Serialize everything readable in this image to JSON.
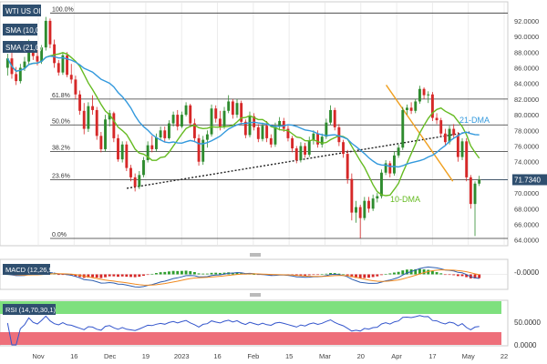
{
  "chart_data": [
    {
      "type": "candlestick",
      "instrument": "WTI US OIL",
      "last_price_label": "71.7340",
      "x_tick_labels": [
        "Nov",
        "16",
        "Dec",
        "19",
        "2023",
        "16",
        "Feb",
        "15",
        "Mar",
        "20",
        "Apr",
        "17",
        "May",
        "22"
      ],
      "y_tick_labels": [
        "92.0000",
        "90.0000",
        "88.0000",
        "86.0000",
        "84.0000",
        "82.0000",
        "80.0000",
        "78.0000",
        "76.0000",
        "74.0000",
        "72.0000",
        "70.0000",
        "68.0000",
        "66.0000",
        "64.0000"
      ],
      "ylim": [
        63.5,
        93.5
      ],
      "overlays": [
        {
          "name": "SMA (10,0)",
          "color": "#66bb22"
        },
        {
          "name": "SMA (21,0)",
          "color": "#3399dd"
        }
      ],
      "fibonacci_levels": [
        {
          "label": "100.0%",
          "value": 93.0
        },
        {
          "label": "61.8%",
          "value": 82.0
        },
        {
          "label": "50.0%",
          "value": 78.7
        },
        {
          "label": "38.2%",
          "value": 75.3
        },
        {
          "label": "23.6%",
          "value": 71.7
        },
        {
          "label": "0.0%",
          "value": 64.2
        }
      ],
      "annotations": [
        {
          "text": "21-DMA",
          "color": "#3399dd"
        },
        {
          "text": "10-DMA",
          "color": "#66bb22"
        }
      ],
      "trendlines": [
        {
          "style": "dotted",
          "color": "#222222",
          "from": [
            0.255,
            70.6
          ],
          "to": [
            0.975,
            77.8
          ]
        },
        {
          "style": "solid",
          "color": "#f0a020",
          "from": [
            0.8,
            83.8
          ],
          "to": [
            0.94,
            71.5
          ]
        }
      ],
      "price_series": [
        {
          "o": 86.0,
          "h": 87.8,
          "l": 85.0,
          "c": 87.2
        },
        {
          "o": 87.2,
          "h": 88.4,
          "l": 84.6,
          "c": 85.2
        },
        {
          "o": 85.2,
          "h": 86.1,
          "l": 83.8,
          "c": 84.3
        },
        {
          "o": 84.3,
          "h": 86.5,
          "l": 84.0,
          "c": 86.0
        },
        {
          "o": 86.0,
          "h": 87.4,
          "l": 85.6,
          "c": 86.8
        },
        {
          "o": 86.8,
          "h": 89.6,
          "l": 86.5,
          "c": 89.0
        },
        {
          "o": 89.0,
          "h": 89.4,
          "l": 87.0,
          "c": 87.5
        },
        {
          "o": 87.5,
          "h": 88.4,
          "l": 86.3,
          "c": 86.8
        },
        {
          "o": 86.8,
          "h": 88.9,
          "l": 86.5,
          "c": 88.6
        },
        {
          "o": 88.6,
          "h": 92.5,
          "l": 88.2,
          "c": 92.0
        },
        {
          "o": 92.0,
          "h": 92.3,
          "l": 88.5,
          "c": 89.0
        },
        {
          "o": 89.0,
          "h": 89.6,
          "l": 86.0,
          "c": 86.6
        },
        {
          "o": 86.6,
          "h": 87.0,
          "l": 85.0,
          "c": 85.4
        },
        {
          "o": 85.4,
          "h": 88.0,
          "l": 85.1,
          "c": 87.6
        },
        {
          "o": 87.6,
          "h": 88.0,
          "l": 84.8,
          "c": 85.1
        },
        {
          "o": 85.1,
          "h": 86.5,
          "l": 84.0,
          "c": 84.5
        },
        {
          "o": 84.5,
          "h": 85.0,
          "l": 82.0,
          "c": 82.6
        },
        {
          "o": 82.6,
          "h": 83.1,
          "l": 80.0,
          "c": 80.5
        },
        {
          "o": 80.5,
          "h": 81.5,
          "l": 77.5,
          "c": 78.2
        },
        {
          "o": 78.2,
          "h": 81.6,
          "l": 77.8,
          "c": 81.1
        },
        {
          "o": 81.1,
          "h": 82.5,
          "l": 80.0,
          "c": 80.6
        },
        {
          "o": 80.6,
          "h": 81.0,
          "l": 76.8,
          "c": 77.3
        },
        {
          "o": 77.3,
          "h": 77.8,
          "l": 75.2,
          "c": 75.6
        },
        {
          "o": 75.6,
          "h": 80.0,
          "l": 75.3,
          "c": 79.4
        },
        {
          "o": 79.4,
          "h": 80.6,
          "l": 78.5,
          "c": 80.2
        },
        {
          "o": 80.2,
          "h": 80.4,
          "l": 76.5,
          "c": 77.0
        },
        {
          "o": 77.0,
          "h": 77.5,
          "l": 74.0,
          "c": 74.3
        },
        {
          "o": 74.3,
          "h": 76.6,
          "l": 73.9,
          "c": 76.2
        },
        {
          "o": 76.2,
          "h": 76.6,
          "l": 72.8,
          "c": 73.2
        },
        {
          "o": 73.2,
          "h": 73.6,
          "l": 71.5,
          "c": 72.0
        },
        {
          "o": 72.0,
          "h": 72.5,
          "l": 70.2,
          "c": 70.8
        },
        {
          "o": 70.8,
          "h": 72.8,
          "l": 70.5,
          "c": 72.3
        },
        {
          "o": 72.3,
          "h": 74.6,
          "l": 72.0,
          "c": 74.2
        },
        {
          "o": 74.2,
          "h": 76.6,
          "l": 73.9,
          "c": 76.1
        },
        {
          "o": 76.1,
          "h": 77.3,
          "l": 75.2,
          "c": 75.6
        },
        {
          "o": 75.6,
          "h": 77.6,
          "l": 75.3,
          "c": 77.1
        },
        {
          "o": 77.1,
          "h": 78.5,
          "l": 76.8,
          "c": 78.0
        },
        {
          "o": 78.0,
          "h": 78.5,
          "l": 76.5,
          "c": 77.0
        },
        {
          "o": 77.0,
          "h": 79.3,
          "l": 76.8,
          "c": 78.9
        },
        {
          "o": 78.9,
          "h": 80.4,
          "l": 78.5,
          "c": 80.0
        },
        {
          "o": 80.0,
          "h": 80.6,
          "l": 78.0,
          "c": 78.5
        },
        {
          "o": 78.5,
          "h": 80.4,
          "l": 78.3,
          "c": 80.0
        },
        {
          "o": 80.0,
          "h": 81.6,
          "l": 79.8,
          "c": 81.2
        },
        {
          "o": 81.2,
          "h": 81.4,
          "l": 78.4,
          "c": 78.9
        },
        {
          "o": 78.9,
          "h": 79.5,
          "l": 76.5,
          "c": 77.0
        },
        {
          "o": 77.0,
          "h": 77.5,
          "l": 73.5,
          "c": 74.0
        },
        {
          "o": 74.0,
          "h": 77.3,
          "l": 73.6,
          "c": 76.8
        },
        {
          "o": 76.8,
          "h": 78.0,
          "l": 75.8,
          "c": 77.5
        },
        {
          "o": 77.5,
          "h": 81.3,
          "l": 77.2,
          "c": 80.8
        },
        {
          "o": 80.8,
          "h": 81.2,
          "l": 79.0,
          "c": 79.5
        },
        {
          "o": 79.5,
          "h": 80.5,
          "l": 78.0,
          "c": 78.5
        },
        {
          "o": 78.5,
          "h": 81.0,
          "l": 78.2,
          "c": 80.5
        },
        {
          "o": 80.5,
          "h": 82.5,
          "l": 80.2,
          "c": 81.7
        },
        {
          "o": 81.7,
          "h": 82.0,
          "l": 79.5,
          "c": 80.0
        },
        {
          "o": 80.0,
          "h": 82.0,
          "l": 79.6,
          "c": 81.5
        },
        {
          "o": 81.5,
          "h": 81.8,
          "l": 78.7,
          "c": 79.1
        },
        {
          "o": 79.1,
          "h": 79.4,
          "l": 77.0,
          "c": 77.4
        },
        {
          "o": 77.4,
          "h": 80.4,
          "l": 77.1,
          "c": 79.8
        },
        {
          "o": 79.8,
          "h": 80.2,
          "l": 78.0,
          "c": 78.4
        },
        {
          "o": 78.4,
          "h": 78.8,
          "l": 76.5,
          "c": 76.9
        },
        {
          "o": 76.9,
          "h": 79.0,
          "l": 76.6,
          "c": 78.6
        },
        {
          "o": 78.6,
          "h": 79.2,
          "l": 76.5,
          "c": 77.0
        },
        {
          "o": 77.0,
          "h": 77.5,
          "l": 75.8,
          "c": 76.2
        },
        {
          "o": 76.2,
          "h": 79.0,
          "l": 75.9,
          "c": 78.5
        },
        {
          "o": 78.5,
          "h": 79.7,
          "l": 78.0,
          "c": 79.2
        },
        {
          "o": 79.2,
          "h": 79.6,
          "l": 77.8,
          "c": 78.2
        },
        {
          "o": 78.2,
          "h": 78.6,
          "l": 76.6,
          "c": 77.0
        },
        {
          "o": 77.0,
          "h": 77.3,
          "l": 75.2,
          "c": 75.7
        },
        {
          "o": 75.7,
          "h": 76.0,
          "l": 73.8,
          "c": 74.2
        },
        {
          "o": 74.2,
          "h": 76.5,
          "l": 73.9,
          "c": 76.0
        },
        {
          "o": 76.0,
          "h": 76.4,
          "l": 74.5,
          "c": 74.9
        },
        {
          "o": 74.9,
          "h": 77.2,
          "l": 74.6,
          "c": 76.7
        },
        {
          "o": 76.7,
          "h": 78.0,
          "l": 76.2,
          "c": 77.6
        },
        {
          "o": 77.6,
          "h": 78.0,
          "l": 75.8,
          "c": 76.2
        },
        {
          "o": 76.2,
          "h": 77.6,
          "l": 75.8,
          "c": 77.2
        },
        {
          "o": 77.2,
          "h": 79.5,
          "l": 76.9,
          "c": 79.0
        },
        {
          "o": 79.0,
          "h": 81.2,
          "l": 78.7,
          "c": 80.6
        },
        {
          "o": 80.6,
          "h": 80.9,
          "l": 78.0,
          "c": 78.4
        },
        {
          "o": 78.4,
          "h": 78.8,
          "l": 76.0,
          "c": 76.5
        },
        {
          "o": 76.5,
          "h": 76.8,
          "l": 74.5,
          "c": 75.0
        },
        {
          "o": 75.0,
          "h": 75.5,
          "l": 71.2,
          "c": 71.8
        },
        {
          "o": 71.8,
          "h": 72.5,
          "l": 66.5,
          "c": 67.5
        },
        {
          "o": 67.5,
          "h": 69.0,
          "l": 66.2,
          "c": 68.2
        },
        {
          "o": 68.2,
          "h": 68.5,
          "l": 64.2,
          "c": 66.8
        },
        {
          "o": 66.8,
          "h": 69.5,
          "l": 66.5,
          "c": 69.0
        },
        {
          "o": 69.0,
          "h": 69.5,
          "l": 67.5,
          "c": 68.0
        },
        {
          "o": 68.0,
          "h": 69.8,
          "l": 67.7,
          "c": 69.3
        },
        {
          "o": 69.3,
          "h": 70.0,
          "l": 68.8,
          "c": 69.6
        },
        {
          "o": 69.6,
          "h": 73.0,
          "l": 69.3,
          "c": 72.6
        },
        {
          "o": 72.6,
          "h": 74.2,
          "l": 72.3,
          "c": 73.8
        },
        {
          "o": 73.8,
          "h": 74.1,
          "l": 72.0,
          "c": 72.5
        },
        {
          "o": 72.5,
          "h": 75.3,
          "l": 72.2,
          "c": 74.8
        },
        {
          "o": 74.8,
          "h": 76.2,
          "l": 74.5,
          "c": 75.8
        },
        {
          "o": 75.8,
          "h": 81.0,
          "l": 75.5,
          "c": 80.6
        },
        {
          "o": 80.6,
          "h": 81.3,
          "l": 80.0,
          "c": 80.9
        },
        {
          "o": 80.9,
          "h": 81.6,
          "l": 80.1,
          "c": 80.5
        },
        {
          "o": 80.5,
          "h": 82.0,
          "l": 80.2,
          "c": 81.7
        },
        {
          "o": 81.7,
          "h": 83.7,
          "l": 81.4,
          "c": 83.3
        },
        {
          "o": 83.3,
          "h": 83.5,
          "l": 82.0,
          "c": 82.5
        },
        {
          "o": 82.5,
          "h": 83.0,
          "l": 81.5,
          "c": 82.6
        },
        {
          "o": 82.6,
          "h": 82.9,
          "l": 79.2,
          "c": 79.6
        },
        {
          "o": 79.6,
          "h": 80.2,
          "l": 78.8,
          "c": 79.3
        },
        {
          "o": 79.3,
          "h": 79.6,
          "l": 77.2,
          "c": 77.6
        },
        {
          "o": 77.6,
          "h": 78.2,
          "l": 76.0,
          "c": 76.5
        },
        {
          "o": 76.5,
          "h": 78.6,
          "l": 76.2,
          "c": 78.2
        },
        {
          "o": 78.2,
          "h": 78.8,
          "l": 77.0,
          "c": 77.4
        },
        {
          "o": 77.4,
          "h": 77.8,
          "l": 74.0,
          "c": 74.6
        },
        {
          "o": 74.6,
          "h": 77.0,
          "l": 74.2,
          "c": 76.6
        },
        {
          "o": 76.6,
          "h": 77.0,
          "l": 71.5,
          "c": 72.0
        },
        {
          "o": 72.0,
          "h": 72.3,
          "l": 68.0,
          "c": 68.6
        },
        {
          "o": 68.6,
          "h": 71.5,
          "l": 64.5,
          "c": 71.2
        },
        {
          "o": 71.2,
          "h": 72.2,
          "l": 70.9,
          "c": 71.7
        }
      ],
      "macd": {
        "label": "MACD (12,26,9)",
        "axis_label": "-0.0000"
      },
      "rsi": {
        "label": "RSI (14,70,30,1)",
        "axis_labels": [
          "50.0000",
          "0.0000"
        ],
        "overbought": 70,
        "oversold": 30
      }
    }
  ]
}
